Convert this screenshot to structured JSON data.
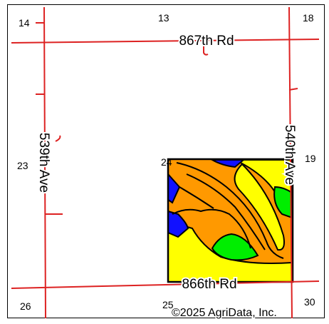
{
  "map": {
    "roads": {
      "north": "867th Rd",
      "south": "866th Rd",
      "west": "539th Ave",
      "east": "540th Ave"
    },
    "sections": {
      "s13": "13",
      "s14": "14",
      "s18": "18",
      "s19": "19",
      "s23": "23",
      "s24": "24",
      "s25": "25",
      "s26": "26",
      "s30": "30"
    },
    "copyright": "©2025 AgriData, Inc."
  },
  "colors": {
    "road": "#dd2222",
    "soil_orange": "#ff9900",
    "soil_yellow": "#ffff00",
    "soil_green": "#00ee00",
    "soil_blue": "#1111ff",
    "boundary": "#000000"
  }
}
